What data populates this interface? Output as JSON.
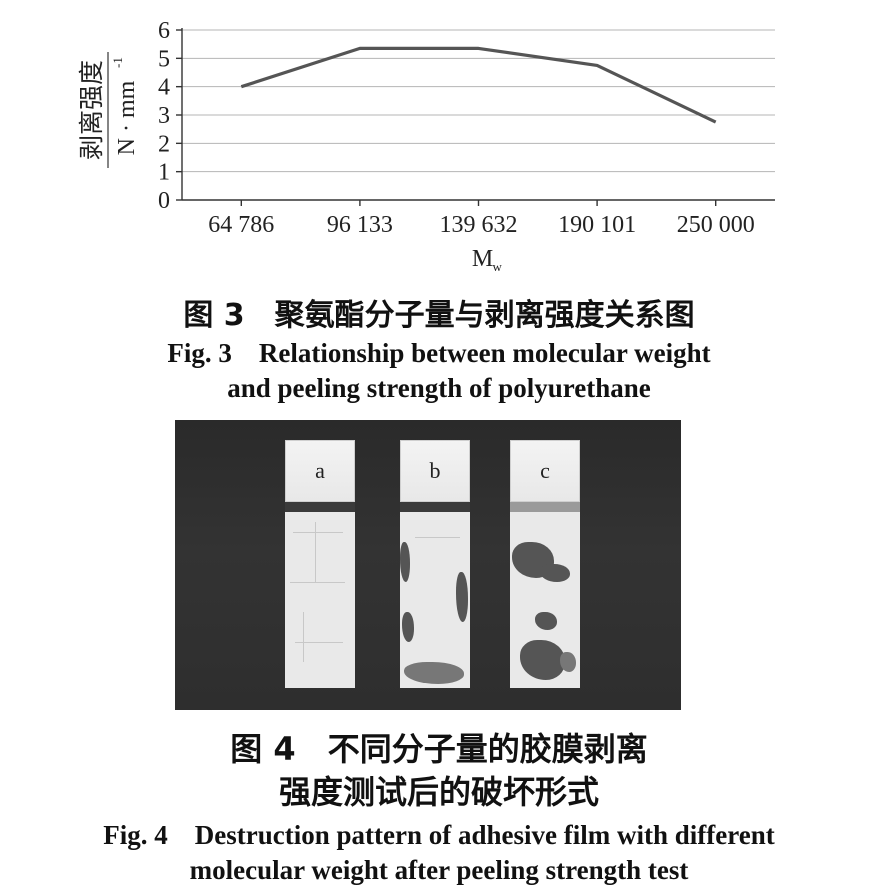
{
  "chart_data": {
    "type": "line",
    "categories": [
      "64 786",
      "96 133",
      "139 632",
      "190 101",
      "250 000"
    ],
    "values": [
      4.0,
      5.35,
      5.35,
      4.75,
      2.75
    ],
    "xlabel": "M",
    "xlabel_sub": "w",
    "ylabel_cn": "剥离强度",
    "ylabel_unit": "N · mm",
    "ylabel_unit_sup": "-1",
    "ylim": [
      0,
      6
    ],
    "yticks": [
      "0",
      "1",
      "2",
      "3",
      "4",
      "5",
      "6"
    ],
    "grid": "horizontal",
    "colors": {
      "line": "#555555",
      "grid": "#b5b5b5"
    }
  },
  "captions": {
    "fig3_cn": "图 3　聚氨酯分子量与剥离强度关系图",
    "fig3_en_1": "Fig. 3　Relationship between molecular weight",
    "fig3_en_2": "and peeling strength of polyurethane",
    "fig4_cn_1": "图 4　不同分子量的胶膜剥离",
    "fig4_cn_2": "强度测试后的破坏形式",
    "fig4_en_1": "Fig. 4　Destruction pattern of adhesive film with different",
    "fig4_en_2": "molecular weight after peeling strength test"
  },
  "photo": {
    "labels": [
      "a",
      "b",
      "c"
    ]
  }
}
